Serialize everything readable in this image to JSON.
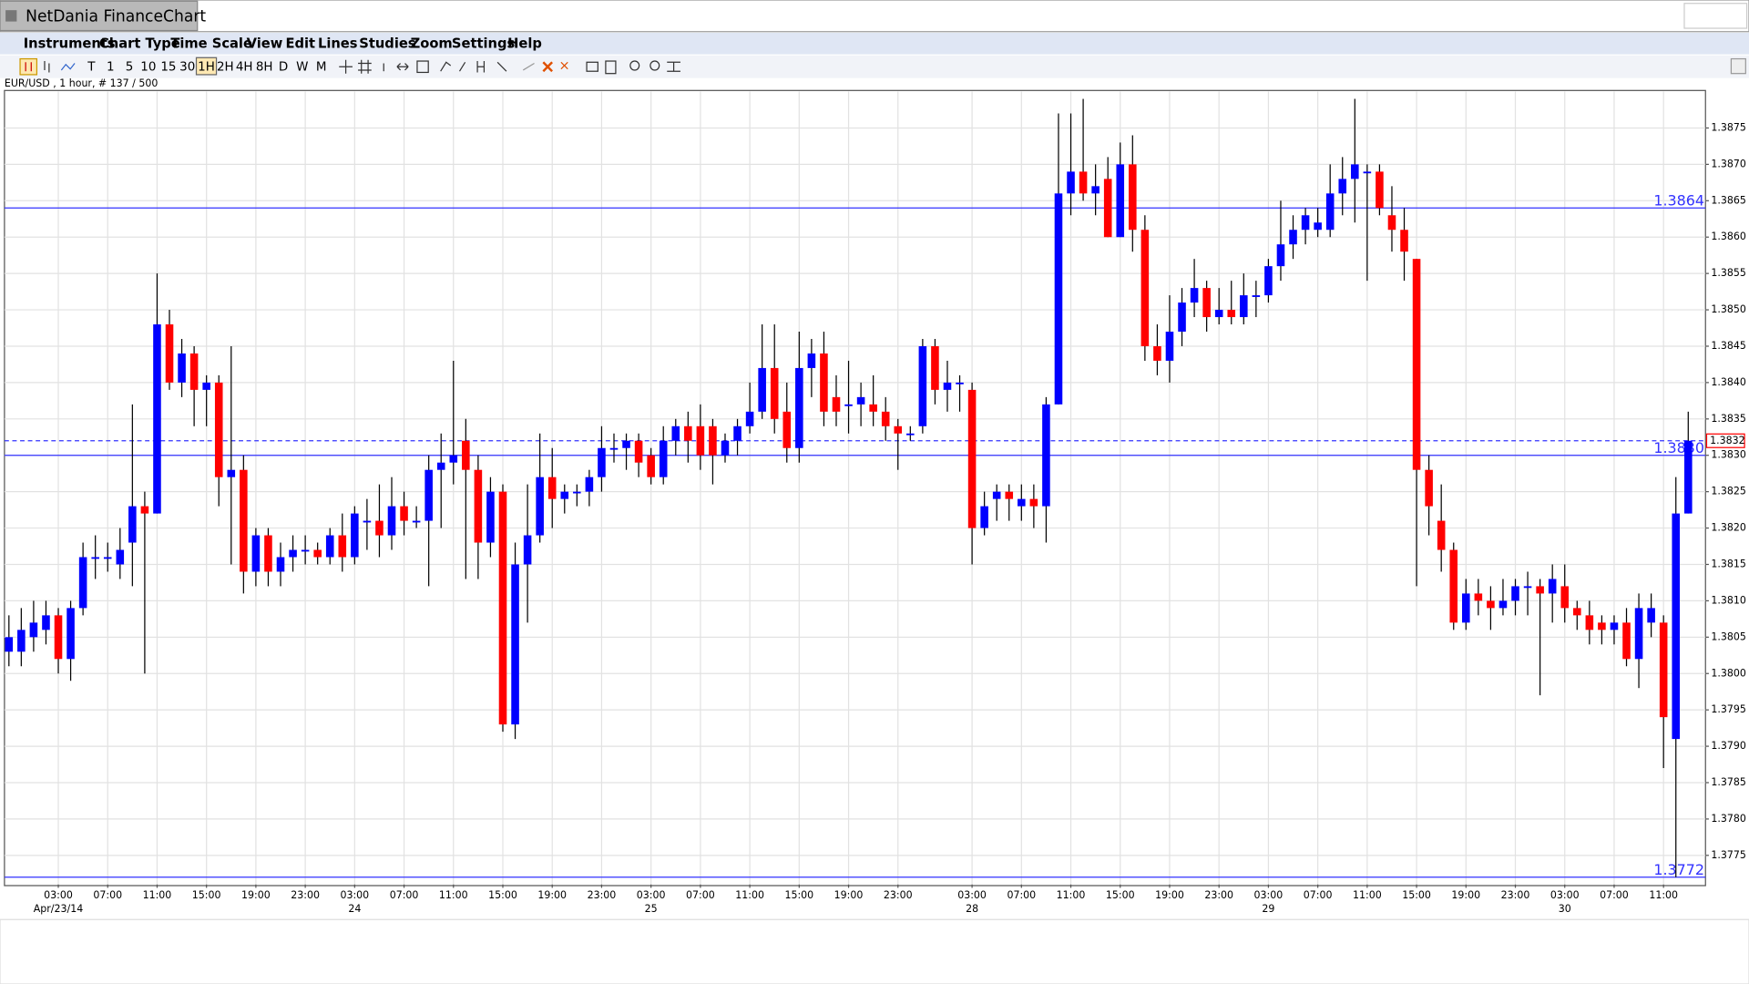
{
  "window": {
    "title": "NetDania FinanceChart",
    "menu": [
      "Instruments",
      "Chart Type",
      "Time Scale",
      "View",
      "Edit",
      "Lines",
      "Studies",
      "Zoom",
      "Settings",
      "Help"
    ],
    "toolbar": [
      "T",
      "1",
      "5",
      "10",
      "15",
      "30",
      "1H",
      "2H",
      "4H",
      "8H",
      "D",
      "W",
      "M"
    ]
  },
  "chart_data": {
    "type": "candlestick",
    "subtitle": "EUR/USD , 1 hour, # 137 / 500",
    "up_color": "#0000ff",
    "down_color": "#ff0000",
    "level_color": "#3333ff",
    "grid": true,
    "open": [
      1.3803,
      1.3803,
      1.3805,
      1.3806,
      1.3808,
      1.3802,
      1.3809,
      1.3816,
      1.3816,
      1.3815,
      1.3818,
      1.3823,
      1.3822,
      1.3848,
      1.384,
      1.3844,
      1.3839,
      1.384,
      1.3827,
      1.3828,
      1.3814,
      1.3819,
      1.3814,
      1.3816,
      1.3817,
      1.3817,
      1.3816,
      1.3819,
      1.3816,
      1.3821,
      1.3821,
      1.3819,
      1.3823,
      1.3821,
      1.3821,
      1.3828,
      1.3829,
      1.3832,
      1.3828,
      1.3818,
      1.3825,
      1.3793,
      1.3815,
      1.3819,
      1.3827,
      1.3824,
      1.3825,
      1.3825,
      1.3827,
      1.3831,
      1.3831,
      1.3832,
      1.383,
      1.3827,
      1.3832,
      1.3834,
      1.3834,
      1.3834,
      1.383,
      1.3832,
      1.3834,
      1.3836,
      1.3842,
      1.3836,
      1.3831,
      1.3842,
      1.3844,
      1.3838,
      1.3837,
      1.3837,
      1.3837,
      1.3836,
      1.3834,
      1.3833,
      1.3834,
      1.3845,
      1.3839,
      1.384,
      1.3839,
      1.382,
      1.3824,
      1.3825,
      1.3823,
      1.3824,
      1.3823,
      1.3837,
      1.3866,
      1.3869,
      1.3866,
      1.3868,
      1.386,
      1.387,
      1.3861,
      1.3845,
      1.3843,
      1.3847,
      1.3851,
      1.3853,
      1.3849,
      1.385,
      1.3849,
      1.3852,
      1.3852,
      1.3856,
      1.3859,
      1.3861,
      1.3861,
      1.3861,
      1.3866,
      1.3868,
      1.3869,
      1.3869,
      1.3863,
      1.3861,
      1.3857,
      1.3828,
      1.3821,
      1.3817,
      1.3807,
      1.3811,
      1.381,
      1.3809,
      1.381,
      1.3812,
      1.3812,
      1.3811,
      1.3812,
      1.3809,
      1.3808,
      1.3807,
      1.3806,
      1.3807,
      1.3802,
      1.3807,
      1.3807,
      1.3791,
      1.3822
    ],
    "high": [
      1.3808,
      1.3809,
      1.381,
      1.381,
      1.3809,
      1.381,
      1.3818,
      1.3819,
      1.3818,
      1.382,
      1.3837,
      1.3825,
      1.3855,
      1.385,
      1.3846,
      1.3845,
      1.3841,
      1.3841,
      1.3845,
      1.383,
      1.382,
      1.382,
      1.3818,
      1.3819,
      1.3819,
      1.3818,
      1.382,
      1.3822,
      1.3823,
      1.3824,
      1.3826,
      1.3827,
      1.3825,
      1.3823,
      1.383,
      1.3833,
      1.3843,
      1.3835,
      1.383,
      1.3827,
      1.3826,
      1.3818,
      1.3826,
      1.3833,
      1.3831,
      1.3826,
      1.3826,
      1.3828,
      1.3834,
      1.3833,
      1.3833,
      1.3833,
      1.3831,
      1.3834,
      1.3835,
      1.3836,
      1.3837,
      1.3835,
      1.3833,
      1.3835,
      1.384,
      1.3848,
      1.3848,
      1.384,
      1.3847,
      1.3846,
      1.3847,
      1.3841,
      1.3843,
      1.384,
      1.3841,
      1.3838,
      1.3835,
      1.3834,
      1.3846,
      1.3846,
      1.3843,
      1.3841,
      1.384,
      1.3825,
      1.3826,
      1.3826,
      1.3826,
      1.3826,
      1.3838,
      1.3877,
      1.3877,
      1.3879,
      1.387,
      1.3871,
      1.3873,
      1.3874,
      1.3863,
      1.3848,
      1.3852,
      1.3853,
      1.3857,
      1.3854,
      1.3853,
      1.3854,
      1.3855,
      1.3854,
      1.3857,
      1.3865,
      1.3863,
      1.3864,
      1.3864,
      1.387,
      1.3871,
      1.3879,
      1.387,
      1.387,
      1.3867,
      1.3864,
      1.3857,
      1.383,
      1.3826,
      1.3818,
      1.3813,
      1.3813,
      1.3812,
      1.3813,
      1.3813,
      1.3814,
      1.3813,
      1.3815,
      1.3815,
      1.381,
      1.381,
      1.3808,
      1.3808,
      1.3809,
      1.3811,
      1.3811,
      1.3808,
      1.3827,
      1.3836
    ],
    "low": [
      1.3801,
      1.3801,
      1.3803,
      1.3804,
      1.38,
      1.3799,
      1.3808,
      1.3813,
      1.3814,
      1.3813,
      1.3812,
      1.38,
      1.3822,
      1.3839,
      1.3838,
      1.3834,
      1.3834,
      1.3823,
      1.3815,
      1.3811,
      1.3812,
      1.3812,
      1.3812,
      1.3814,
      1.3815,
      1.3815,
      1.3815,
      1.3814,
      1.3815,
      1.3817,
      1.3816,
      1.3817,
      1.3819,
      1.382,
      1.3812,
      1.382,
      1.3826,
      1.3813,
      1.3813,
      1.3816,
      1.3792,
      1.3791,
      1.3807,
      1.3818,
      1.382,
      1.3822,
      1.3823,
      1.3823,
      1.3825,
      1.3829,
      1.3828,
      1.3827,
      1.3826,
      1.3826,
      1.383,
      1.3829,
      1.3828,
      1.3826,
      1.3829,
      1.383,
      1.3833,
      1.3835,
      1.3833,
      1.3829,
      1.3829,
      1.3838,
      1.3834,
      1.3834,
      1.3833,
      1.3834,
      1.3834,
      1.3832,
      1.3828,
      1.3832,
      1.3833,
      1.3837,
      1.3836,
      1.3836,
      1.3815,
      1.3819,
      1.3821,
      1.3821,
      1.3821,
      1.382,
      1.3818,
      1.3837,
      1.3863,
      1.3865,
      1.3863,
      1.386,
      1.386,
      1.3858,
      1.3843,
      1.3841,
      1.384,
      1.3845,
      1.3849,
      1.3847,
      1.3848,
      1.3848,
      1.3848,
      1.3849,
      1.3851,
      1.3854,
      1.3857,
      1.3859,
      1.386,
      1.386,
      1.3863,
      1.3862,
      1.3854,
      1.3863,
      1.3858,
      1.3854,
      1.3812,
      1.3819,
      1.3814,
      1.3806,
      1.3806,
      1.3808,
      1.3806,
      1.3808,
      1.3808,
      1.3808,
      1.3797,
      1.3807,
      1.3807,
      1.3806,
      1.3804,
      1.3804,
      1.3804,
      1.3801,
      1.3798,
      1.3805,
      1.3787,
      1.3772,
      1.3822
    ],
    "close": [
      1.3805,
      1.3806,
      1.3807,
      1.3808,
      1.3802,
      1.3809,
      1.3816,
      1.3816,
      1.3816,
      1.3817,
      1.3823,
      1.3822,
      1.3848,
      1.384,
      1.3844,
      1.3839,
      1.384,
      1.3827,
      1.3828,
      1.3814,
      1.3819,
      1.3814,
      1.3816,
      1.3817,
      1.3817,
      1.3816,
      1.3819,
      1.3816,
      1.3822,
      1.3821,
      1.3819,
      1.3823,
      1.3821,
      1.3821,
      1.3828,
      1.3829,
      1.383,
      1.3828,
      1.3818,
      1.3825,
      1.3793,
      1.3815,
      1.3819,
      1.3827,
      1.3824,
      1.3825,
      1.3825,
      1.3827,
      1.3831,
      1.3831,
      1.3832,
      1.3829,
      1.3827,
      1.3832,
      1.3834,
      1.3832,
      1.383,
      1.383,
      1.3832,
      1.3834,
      1.3836,
      1.3842,
      1.3835,
      1.3831,
      1.3842,
      1.3844,
      1.3836,
      1.3836,
      1.3837,
      1.3838,
      1.3836,
      1.3834,
      1.3833,
      1.3833,
      1.3845,
      1.3839,
      1.384,
      1.384,
      1.382,
      1.3823,
      1.3825,
      1.3824,
      1.3824,
      1.3823,
      1.3837,
      1.3866,
      1.3869,
      1.3866,
      1.3867,
      1.386,
      1.387,
      1.3861,
      1.3845,
      1.3843,
      1.3847,
      1.3851,
      1.3853,
      1.3849,
      1.385,
      1.3849,
      1.3852,
      1.3852,
      1.3856,
      1.3859,
      1.3861,
      1.3863,
      1.3862,
      1.3866,
      1.3868,
      1.387,
      1.3869,
      1.3864,
      1.3861,
      1.3858,
      1.3828,
      1.3823,
      1.3817,
      1.3807,
      1.3811,
      1.381,
      1.3809,
      1.381,
      1.3812,
      1.3812,
      1.3811,
      1.3813,
      1.3809,
      1.3808,
      1.3806,
      1.3806,
      1.3807,
      1.3802,
      1.3809,
      1.3809,
      1.3794,
      1.3822,
      1.3832
    ],
    "xticks": [
      {
        "value": 4,
        "label": "03:00"
      },
      {
        "value": 8,
        "label": "07:00"
      },
      {
        "value": 12,
        "label": "11:00"
      },
      {
        "value": 16,
        "label": "15:00"
      },
      {
        "value": 20,
        "label": "19:00"
      },
      {
        "value": 24,
        "label": "23:00"
      },
      {
        "value": 28,
        "label": "03:00"
      },
      {
        "value": 32,
        "label": "07:00"
      },
      {
        "value": 36,
        "label": "11:00"
      },
      {
        "value": 40,
        "label": "15:00"
      },
      {
        "value": 44,
        "label": "19:00"
      },
      {
        "value": 48,
        "label": "23:00"
      },
      {
        "value": 52,
        "label": "03:00"
      },
      {
        "value": 56,
        "label": "07:00"
      },
      {
        "value": 60,
        "label": "11:00"
      },
      {
        "value": 64,
        "label": "15:00"
      },
      {
        "value": 68,
        "label": "19:00"
      },
      {
        "value": 72,
        "label": "23:00"
      },
      {
        "value": 78,
        "label": "03:00"
      },
      {
        "value": 82,
        "label": "07:00"
      },
      {
        "value": 86,
        "label": "11:00"
      },
      {
        "value": 90,
        "label": "15:00"
      },
      {
        "value": 94,
        "label": "19:00"
      },
      {
        "value": 98,
        "label": "23:00"
      },
      {
        "value": 102,
        "label": "03:00"
      },
      {
        "value": 106,
        "label": "07:00"
      },
      {
        "value": 110,
        "label": "11:00"
      },
      {
        "value": 114,
        "label": "15:00"
      },
      {
        "value": 118,
        "label": "19:00"
      },
      {
        "value": 122,
        "label": "23:00"
      },
      {
        "value": 126,
        "label": "03:00"
      },
      {
        "value": 130,
        "label": "07:00"
      },
      {
        "value": 134,
        "label": "11:00"
      }
    ],
    "date_labels": [
      {
        "value": 4,
        "label": "Apr/23/14"
      },
      {
        "value": 28,
        "label": "24"
      },
      {
        "value": 52,
        "label": "25"
      },
      {
        "value": 78,
        "label": "28"
      },
      {
        "value": 102,
        "label": "29"
      },
      {
        "value": 126,
        "label": "30"
      }
    ],
    "ylim": [
      1.3771,
      1.388
    ],
    "yticks": [
      1.3775,
      {
        "value": 1.378,
        "label": "1.3780"
      },
      1.3785,
      {
        "value": 1.379,
        "label": "1.3790"
      },
      1.3795,
      {
        "value": 1.38,
        "label": "1.3800"
      },
      1.3805,
      {
        "value": 1.381,
        "label": "1.3810"
      },
      1.3815,
      {
        "value": 1.382,
        "label": "1.3820"
      },
      1.3825,
      {
        "value": 1.383,
        "label": "1.3830"
      },
      1.3835,
      {
        "value": 1.384,
        "label": "1.3840"
      },
      1.3845,
      {
        "value": 1.385,
        "label": "1.3850"
      },
      1.3855,
      {
        "value": 1.386,
        "label": "1.3860"
      },
      1.3865,
      {
        "value": 1.387,
        "label": "1.3870"
      },
      1.3875
    ],
    "levels": [
      1.3864,
      {
        "value": 1.383,
        "label": "1.3830"
      },
      1.3772
    ],
    "last_price": 1.3832
  }
}
